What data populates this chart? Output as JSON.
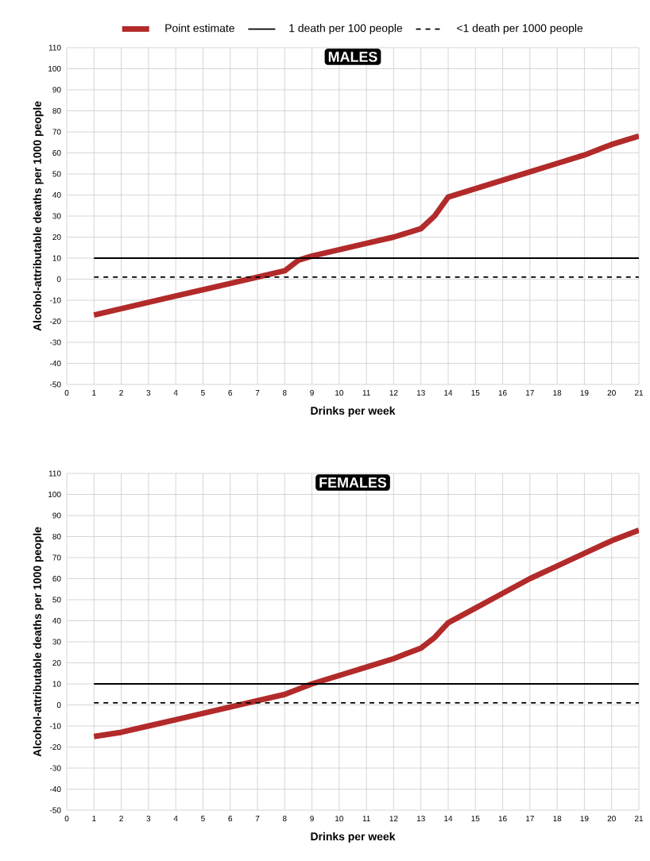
{
  "chart_data": [
    {
      "type": "line",
      "title": "MALES",
      "xlabel": "Drinks per week",
      "ylabel": "Alcohol-attributable deaths per 1000 people",
      "x": [
        1,
        2,
        3,
        4,
        5,
        6,
        7,
        8,
        8.5,
        9,
        10,
        11,
        12,
        13,
        13.5,
        14,
        15,
        16,
        17,
        18,
        19,
        20,
        21
      ],
      "series": [
        {
          "name": "Point estimate",
          "color": "#b22a2a",
          "values": [
            -17,
            -14,
            -11,
            -8,
            -5,
            -2,
            1,
            4,
            9,
            11,
            14,
            17,
            20,
            24,
            30,
            39,
            43,
            47,
            51,
            55,
            59,
            64,
            68
          ]
        }
      ],
      "ref_lines": [
        {
          "axis": "y",
          "value": 10,
          "label": "1 death per 100 people",
          "color": "#000000",
          "line_style": "solid"
        },
        {
          "axis": "y",
          "value": 1,
          "label": "<1 death per 1000 people",
          "color": "#000000",
          "line_style": "dashed"
        }
      ],
      "xlim": [
        0,
        21
      ],
      "xticks": [
        0,
        1,
        2,
        3,
        4,
        5,
        6,
        7,
        8,
        9,
        10,
        11,
        12,
        13,
        14,
        15,
        16,
        17,
        18,
        19,
        20,
        21
      ],
      "ylim": [
        -50,
        110
      ],
      "yticks": [
        -50,
        -40,
        -30,
        -20,
        -10,
        0,
        10,
        20,
        30,
        40,
        50,
        60,
        70,
        80,
        90,
        100,
        110
      ],
      "grid": true,
      "legend": "top"
    },
    {
      "type": "line",
      "title": "FEMALES",
      "xlabel": "Drinks per week",
      "ylabel": "Alcohol-attributable deaths per 1000 people",
      "x": [
        1,
        2,
        3,
        4,
        5,
        6,
        7,
        8,
        9,
        10,
        11,
        12,
        13,
        13.5,
        14,
        15,
        16,
        17,
        18,
        19,
        20,
        21
      ],
      "series": [
        {
          "color": "#b22a2a",
          "values": [
            -15,
            -13,
            -10,
            -7,
            -4,
            -1,
            2,
            5,
            10,
            14,
            18,
            22,
            27,
            32,
            39,
            46,
            53,
            60,
            66,
            72,
            78,
            83
          ]
        }
      ],
      "ref_lines": [
        {
          "axis": "y",
          "value": 10,
          "color": "#000000",
          "line_style": "solid"
        },
        {
          "axis": "y",
          "value": 1,
          "color": "#000000",
          "line_style": "dashed"
        }
      ],
      "xlim": [
        0,
        21
      ],
      "xticks": [
        0,
        1,
        2,
        3,
        4,
        5,
        6,
        7,
        8,
        9,
        10,
        11,
        12,
        13,
        14,
        15,
        16,
        17,
        18,
        19,
        20,
        21
      ],
      "ylim": [
        -50,
        110
      ],
      "yticks": [
        -50,
        -40,
        -30,
        -20,
        -10,
        0,
        10,
        20,
        30,
        40,
        50,
        60,
        70,
        80,
        90,
        100,
        110
      ],
      "grid": true
    }
  ]
}
